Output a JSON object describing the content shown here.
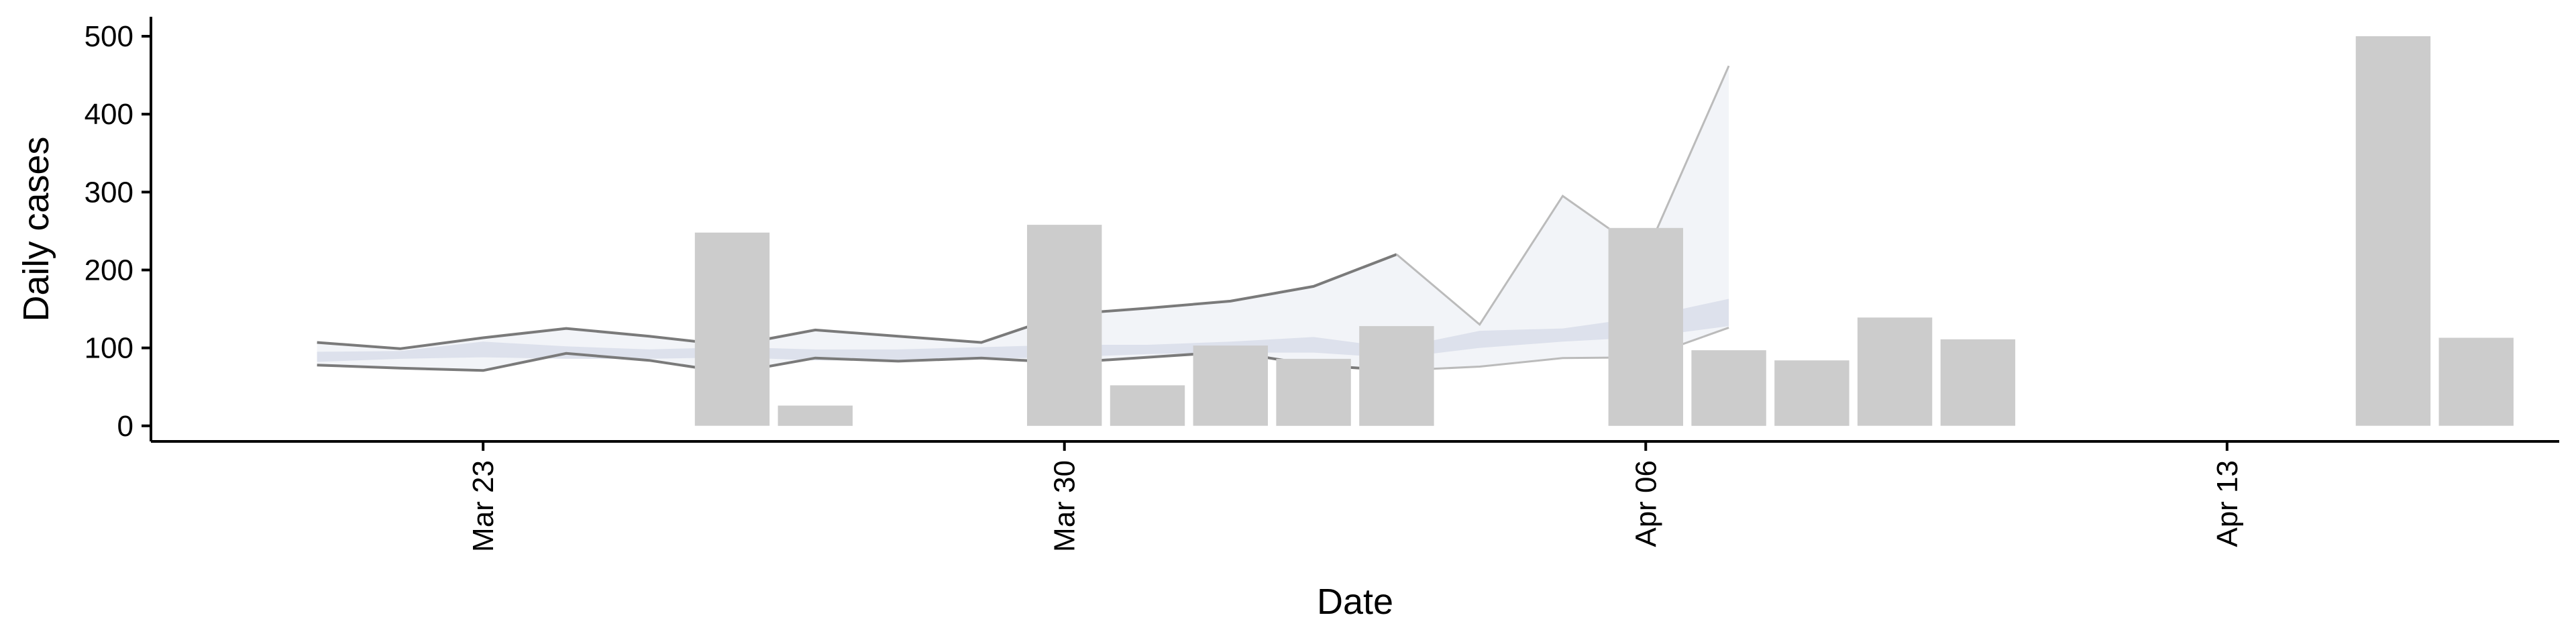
{
  "chart_data": {
    "type": "bar",
    "title": "",
    "xlabel": "Date",
    "ylabel": "Daily cases",
    "ylim": [
      -20,
      525
    ],
    "xlim": [
      "2020-03-19",
      "2020-04-17"
    ],
    "yticks": [
      0,
      100,
      200,
      300,
      400,
      500
    ],
    "xticks": [
      {
        "date": "2020-03-23",
        "label": "Mar 23"
      },
      {
        "date": "2020-03-30",
        "label": "Mar 30"
      },
      {
        "date": "2020-04-06",
        "label": "Apr 06"
      },
      {
        "date": "2020-04-13",
        "label": "Apr 13"
      }
    ],
    "grid": false,
    "legend": "none",
    "colors": {
      "bars": "#cccccc",
      "band_inner": "#dadfea",
      "band_outer": "#eef0f5",
      "bound_dark": "#7a7a7a",
      "bound_light": "#bbbbbb",
      "axis": "#000000"
    },
    "bars": [
      {
        "date": "2020-03-26",
        "value": 248
      },
      {
        "date": "2020-03-27",
        "value": 26
      },
      {
        "date": "2020-03-30",
        "value": 258
      },
      {
        "date": "2020-03-31",
        "value": 52
      },
      {
        "date": "2020-04-01",
        "value": 103
      },
      {
        "date": "2020-04-02",
        "value": 86
      },
      {
        "date": "2020-04-03",
        "value": 128
      },
      {
        "date": "2020-04-06",
        "value": 254
      },
      {
        "date": "2020-04-07",
        "value": 97
      },
      {
        "date": "2020-04-08",
        "value": 84
      },
      {
        "date": "2020-04-09",
        "value": 139
      },
      {
        "date": "2020-04-10",
        "value": 111
      },
      {
        "date": "2020-04-15",
        "value": 500
      },
      {
        "date": "2020-04-16",
        "value": 113
      }
    ],
    "estimate": {
      "dates": [
        "2020-03-21",
        "2020-03-22",
        "2020-03-23",
        "2020-03-24",
        "2020-03-25",
        "2020-03-26",
        "2020-03-27",
        "2020-03-28",
        "2020-03-29",
        "2020-03-30",
        "2020-03-31",
        "2020-04-01",
        "2020-04-02",
        "2020-04-03",
        "2020-04-04",
        "2020-04-05",
        "2020-04-06",
        "2020-04-07"
      ],
      "outer_upper": [
        107,
        99,
        113,
        125,
        115,
        103,
        123,
        115,
        107,
        143,
        151,
        160,
        179,
        220,
        130,
        295,
        220,
        462
      ],
      "outer_lower": [
        78,
        74,
        71,
        93,
        84,
        68,
        87,
        83,
        87,
        81,
        88,
        95,
        78,
        71,
        76,
        87,
        88,
        126
      ],
      "inner_upper": [
        95,
        96,
        108,
        102,
        98,
        101,
        98,
        98,
        101,
        104,
        104,
        108,
        114,
        100,
        122,
        125,
        140,
        163
      ],
      "inner_lower": [
        82,
        86,
        88,
        86,
        86,
        88,
        84,
        84,
        86,
        88,
        92,
        94,
        94,
        87,
        100,
        108,
        114,
        128
      ]
    }
  }
}
